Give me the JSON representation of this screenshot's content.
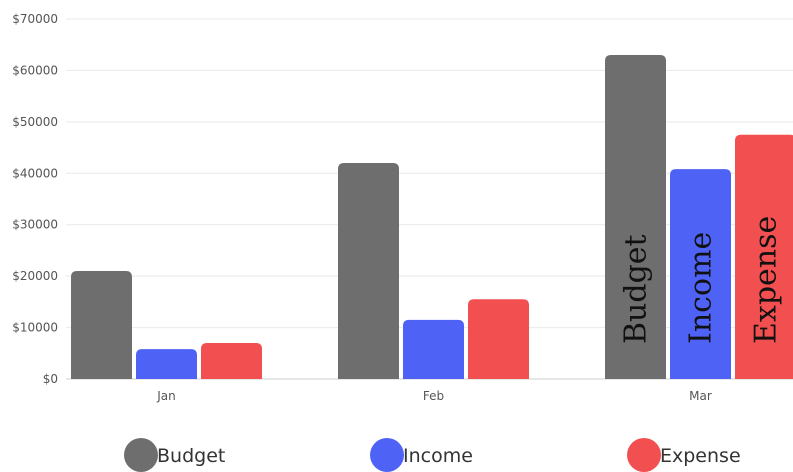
{
  "chart_data": {
    "type": "bar",
    "categories": [
      "Jan",
      "Feb",
      "Mar"
    ],
    "series": [
      {
        "name": "Budget",
        "values": [
          21000,
          42000,
          63000
        ],
        "color": "#6e6e6e"
      },
      {
        "name": "Income",
        "values": [
          5800,
          11500,
          40800
        ],
        "color": "#4e63f5"
      },
      {
        "name": "Expense",
        "values": [
          7000,
          15500,
          47500
        ],
        "color": "#f24f50"
      }
    ],
    "y_ticks": [
      "$0",
      "$10000",
      "$20000",
      "$30000",
      "$40000",
      "$50000",
      "$60000",
      "$70000"
    ],
    "ylim": [
      0,
      70000
    ],
    "grid": true,
    "legend_position": "bottom",
    "bar_labels_category": "Mar"
  }
}
